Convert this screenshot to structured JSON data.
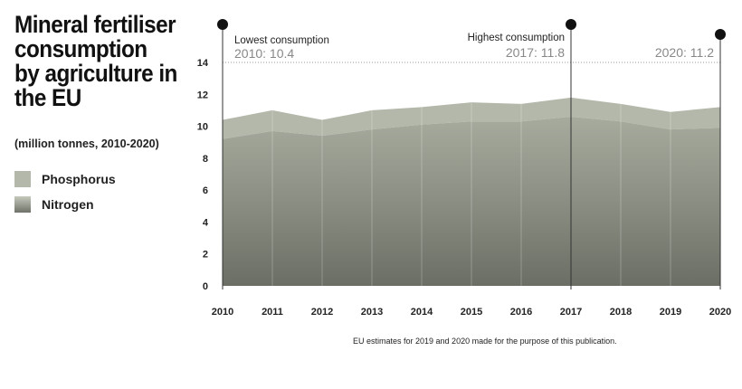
{
  "title": "Mineral fertiliser consumption by agriculture in the EU",
  "subtitle": "(million tonnes, 2010-2020)",
  "legend": [
    {
      "name": "Phosphorus",
      "color": "#b3b8aa"
    },
    {
      "name": "Nitrogen",
      "color": "#7a7d73"
    }
  ],
  "note": "EU estimates for 2019 and 2020 made for the purpose of this publication.",
  "chart_data": {
    "type": "area",
    "title": "Mineral fertiliser consumption by agriculture in the EU",
    "ylabel": "million tonnes",
    "x": [
      "2010",
      "2011",
      "2012",
      "2013",
      "2014",
      "2015",
      "2016",
      "2017",
      "2018",
      "2019",
      "2020"
    ],
    "ylim": [
      0,
      14
    ],
    "yticks": [
      0,
      2,
      4,
      6,
      8,
      10,
      12,
      14
    ],
    "grid": false,
    "stacked": true,
    "series": [
      {
        "name": "Nitrogen",
        "values": [
          9.2,
          9.7,
          9.4,
          9.8,
          10.1,
          10.3,
          10.3,
          10.6,
          10.3,
          9.8,
          9.9
        ]
      },
      {
        "name": "Phosphorus",
        "values": [
          1.2,
          1.3,
          1.0,
          1.2,
          1.1,
          1.2,
          1.1,
          1.2,
          1.1,
          1.1,
          1.3
        ]
      }
    ],
    "totals": [
      10.4,
      11.0,
      10.4,
      11.0,
      11.2,
      11.5,
      11.4,
      11.8,
      11.4,
      10.9,
      11.2
    ],
    "reference_line": 14,
    "annotations": [
      {
        "x": "2010",
        "label": "Lowest consumption",
        "value": "2010: 10.4"
      },
      {
        "x": "2017",
        "label": "Highest consumption",
        "value": "2017: 11.8"
      },
      {
        "x": "2020",
        "label": "",
        "value": "2020: 11.2"
      }
    ]
  }
}
